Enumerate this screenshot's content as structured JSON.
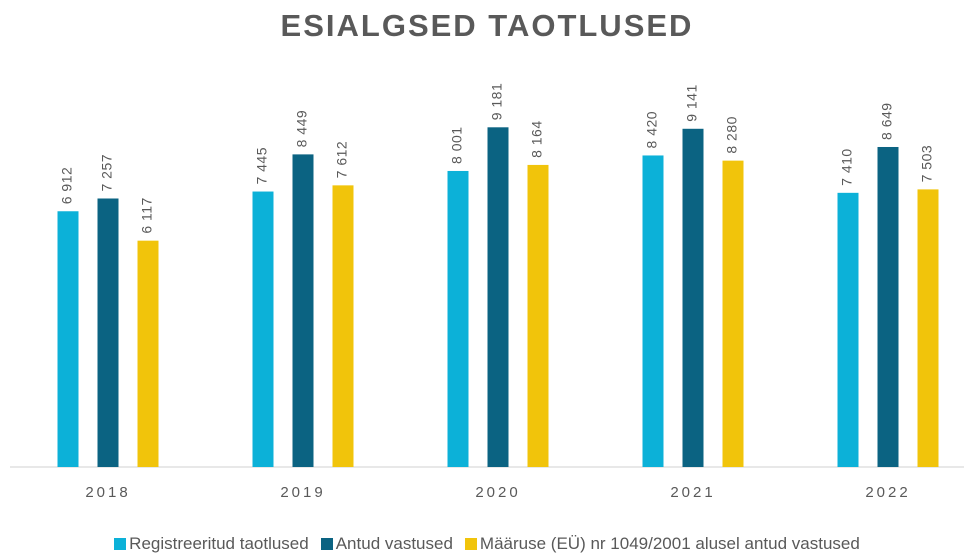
{
  "chart_data": {
    "type": "bar",
    "title": "ESIALGSED TAOTLUSED",
    "categories": [
      "2018",
      "2019",
      "2020",
      "2021",
      "2022"
    ],
    "series": [
      {
        "name": "Registreeritud taotlused",
        "color": "#0cb1d8",
        "values": [
          6912,
          7445,
          8001,
          8420,
          7410
        ],
        "value_labels": [
          "6 912",
          "7 445",
          "8 001",
          "8 420",
          "7 410"
        ]
      },
      {
        "name": "Antud vastused",
        "color": "#0b6382",
        "values": [
          7257,
          8449,
          9181,
          9141,
          8649
        ],
        "value_labels": [
          "7 257",
          "8 449",
          "9 181",
          "9 141",
          "8 649"
        ]
      },
      {
        "name": "Määruse (EÜ) nr 1049/2001 alusel antud vastused",
        "color": "#f1c40b",
        "values": [
          6117,
          7612,
          8164,
          8280,
          7503
        ],
        "value_labels": [
          "6 117",
          "7 612",
          "8 164",
          "8 280",
          "7 503"
        ]
      }
    ],
    "ylim": [
      0,
      10000
    ],
    "grid": false,
    "legend": "bottom"
  }
}
